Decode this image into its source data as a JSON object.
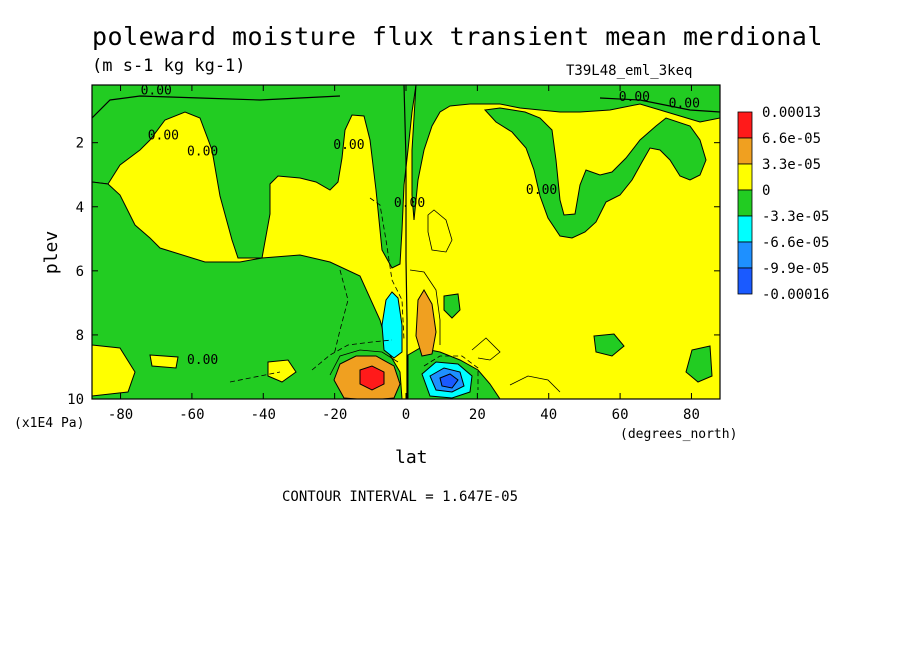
{
  "chart_data": {
    "type": "heatmap",
    "title": "poleward moisture flux transient mean merdional",
    "subtitle": "(m s-1 kg kg-1)",
    "run_label": "T39L48_eml_3keq",
    "xlabel": "lat",
    "x_units": "(degrees_north)",
    "ylabel": "plev",
    "y_scale_note": "(x1E4 Pa)",
    "contour_interval_text": "CONTOUR INTERVAL = 1.647E-05",
    "xlim": [
      -88,
      88
    ],
    "ylim": [
      0.2,
      10
    ],
    "y_inverted": true,
    "x_ticks": [
      "-80",
      "-60",
      "-40",
      "-20",
      "0",
      "20",
      "40",
      "60",
      "80"
    ],
    "x_tick_values": [
      -80,
      -60,
      -40,
      -20,
      0,
      20,
      40,
      60,
      80
    ],
    "y_ticks": [
      "2",
      "4",
      "6",
      "8",
      "10"
    ],
    "y_tick_values": [
      2,
      4,
      6,
      8,
      10
    ],
    "legend": {
      "placement": "right",
      "levels": [
        "0.00013",
        "6.6e-05",
        "3.3e-05",
        "0",
        "-3.3e-05",
        "-6.6e-05",
        "-9.9e-05",
        "-0.00016"
      ],
      "colors": [
        "#ff1a1a",
        "#f0a020",
        "#ffff00",
        "#22cc22",
        "#00ffff",
        "#1e90ff",
        "#1a5aff",
        "#1a5aff"
      ]
    },
    "contour_labels": [
      {
        "text": "0.00",
        "lat": -70,
        "plev": 0.5
      },
      {
        "text": "0.00",
        "lat": -68,
        "plev": 1.9
      },
      {
        "text": "0.00",
        "lat": -57,
        "plev": 2.4
      },
      {
        "text": "0.00",
        "lat": -16,
        "plev": 2.2
      },
      {
        "text": "0.00",
        "lat": 1,
        "plev": 4.0
      },
      {
        "text": "0.00",
        "lat": 38,
        "plev": 3.6
      },
      {
        "text": "0.00",
        "lat": 64,
        "plev": 0.7
      },
      {
        "text": "0.00",
        "lat": 78,
        "plev": 0.9
      },
      {
        "text": "0.00",
        "lat": -57,
        "plev": 8.9
      }
    ]
  }
}
